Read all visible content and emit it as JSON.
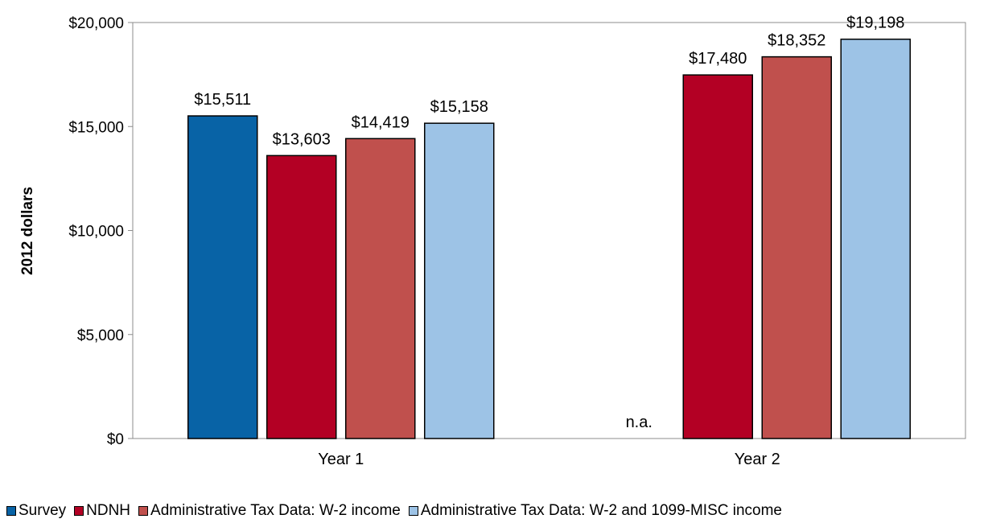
{
  "chart_data": {
    "type": "bar",
    "title": "",
    "ylabel": "2012 dollars",
    "xlabel": "",
    "ylim": [
      0,
      20000
    ],
    "yticks": [
      {
        "value": 0,
        "label": "$0"
      },
      {
        "value": 5000,
        "label": "$5,000"
      },
      {
        "value": 10000,
        "label": "$10,000"
      },
      {
        "value": 15000,
        "label": "$15,000"
      },
      {
        "value": 20000,
        "label": "$20,000"
      }
    ],
    "categories": [
      "Year 1",
      "Year 2"
    ],
    "series": [
      {
        "name": "Survey",
        "color": "#0863a6",
        "values": [
          15511,
          null
        ],
        "labels": [
          "$15,511",
          "n.a."
        ]
      },
      {
        "name": "NDNH",
        "color": "#b30024",
        "values": [
          13603,
          17480
        ],
        "labels": [
          "$13,603",
          "$17,480"
        ]
      },
      {
        "name": "Administrative Tax Data: W-2 income",
        "color": "#c0504d",
        "values": [
          14419,
          18352
        ],
        "labels": [
          "$14,419",
          "$18,352"
        ]
      },
      {
        "name": "Administrative Tax Data: W-2 and 1099-MISC income",
        "color": "#9dc3e6",
        "values": [
          15158,
          19198
        ],
        "labels": [
          "$15,158",
          "$19,198"
        ]
      }
    ],
    "legend_position": "bottom",
    "grid": false
  }
}
